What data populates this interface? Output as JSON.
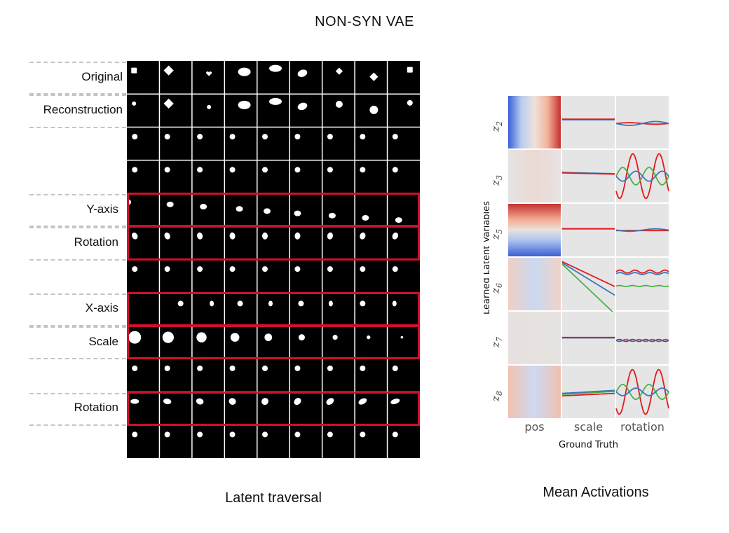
{
  "figure": {
    "title": "NON-SYN VAE",
    "left_caption": "Latent traversal",
    "right_caption": "Mean Activations"
  },
  "traversal": {
    "columns": 9,
    "rows": [
      {
        "label": "Original",
        "highlight": false
      },
      {
        "label": "Reconstruction",
        "highlight": false
      },
      {
        "label": "",
        "highlight": false
      },
      {
        "label": "",
        "highlight": false
      },
      {
        "label": "Y-axis",
        "highlight": true
      },
      {
        "label": "Rotation",
        "highlight": true
      },
      {
        "label": "",
        "highlight": false
      },
      {
        "label": "X-axis",
        "highlight": true
      },
      {
        "label": "Scale",
        "highlight": true
      },
      {
        "label": "",
        "highlight": false
      },
      {
        "label": "Rotation",
        "highlight": true
      },
      {
        "label": "",
        "highlight": false
      }
    ]
  },
  "mean_activations": {
    "ylabel": "Learned Latent Variables",
    "xlabel": "Ground Truth",
    "columns": [
      "pos",
      "scale",
      "rotation"
    ],
    "latents": [
      {
        "name": "z",
        "sub": "2"
      },
      {
        "name": "z",
        "sub": "3"
      },
      {
        "name": "z",
        "sub": "5"
      },
      {
        "name": "z",
        "sub": "6"
      },
      {
        "name": "z",
        "sub": "7"
      },
      {
        "name": "z",
        "sub": "8"
      }
    ],
    "colors": {
      "red": "#e41a1c",
      "blue": "#3a78b8",
      "green": "#4daf4a",
      "panel_bg": "#e5e5e5"
    }
  }
}
